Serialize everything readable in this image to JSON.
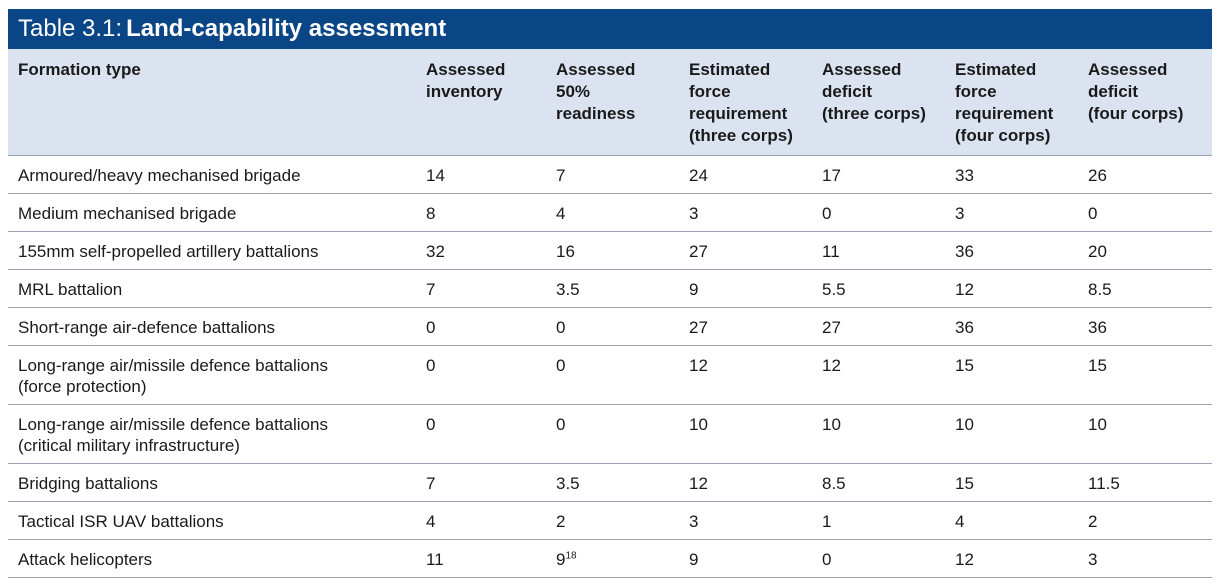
{
  "table": {
    "title_prefix": "Table 3.1:",
    "title_main": "Land-capability assessment",
    "columns": [
      "Formation type",
      "Assessed\ninventory",
      "Assessed\n50%\nreadiness",
      "Estimated\nforce\nrequirement\n(three corps)",
      "Assessed\ndeficit\n(three corps)",
      "Estimated\nforce\nrequirement\n(four corps)",
      "Assessed\ndeficit\n(four corps)"
    ],
    "rows": [
      [
        "Armoured/heavy mechanised brigade",
        "14",
        "7",
        "24",
        "17",
        "33",
        "26"
      ],
      [
        "Medium mechanised brigade",
        "8",
        "4",
        "3",
        "0",
        "3",
        "0"
      ],
      [
        "155mm self-propelled artillery battalions",
        "32",
        "16",
        "27",
        "11",
        "36",
        "20"
      ],
      [
        "MRL battalion",
        "7",
        "3.5",
        "9",
        "5.5",
        "12",
        "8.5"
      ],
      [
        "Short-range air-defence battalions",
        "0",
        "0",
        "27",
        "27",
        "36",
        "36"
      ],
      [
        "Long-range air/missile defence battalions\n(force protection)",
        "0",
        "0",
        "12",
        "12",
        "15",
        "15"
      ],
      [
        "Long-range air/missile defence battalions\n(critical military infrastructure)",
        "0",
        "0",
        "10",
        "10",
        "10",
        "10"
      ],
      [
        "Bridging battalions",
        "7",
        "3.5",
        "12",
        "8.5",
        "15",
        "11.5"
      ],
      [
        "Tactical ISR UAV battalions",
        "4",
        "2",
        "3",
        "1",
        "4",
        "2"
      ],
      [
        "Attack helicopters",
        "11",
        "9",
        "9",
        "0",
        "12",
        "3"
      ]
    ],
    "footnote_marker": {
      "row": 9,
      "col": 2,
      "text": "18"
    }
  },
  "colors": {
    "title_bg": "#0a4586",
    "header_bg": "#dce3f0",
    "rule": "#9aa4b5"
  }
}
